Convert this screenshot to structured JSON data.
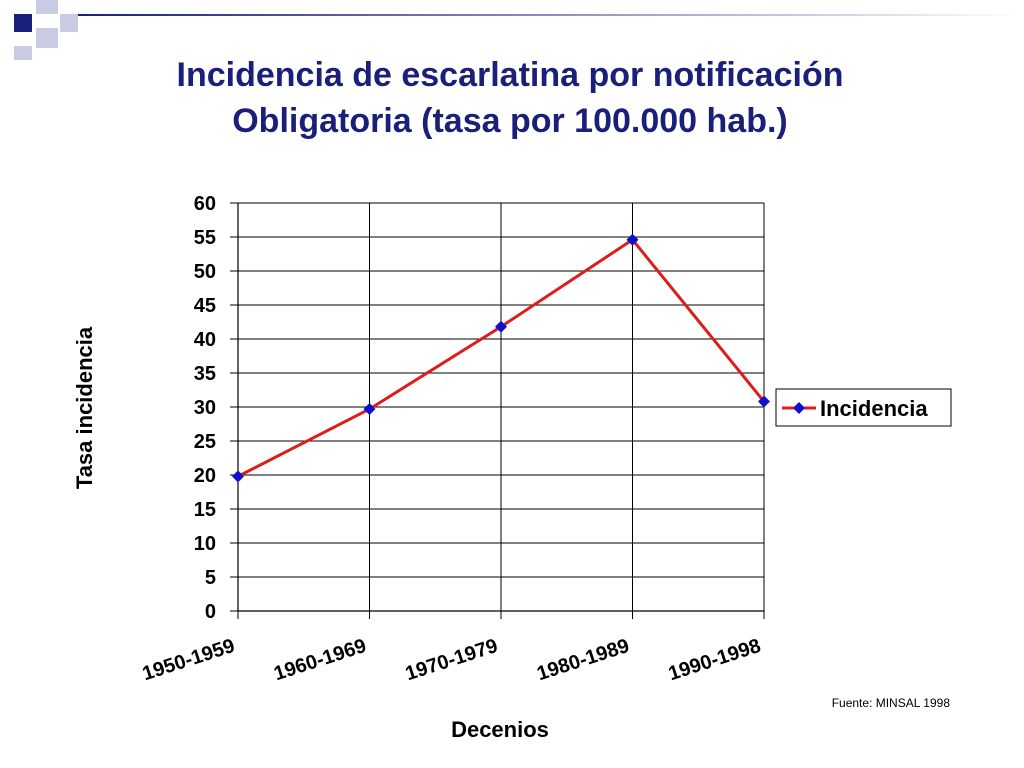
{
  "slide": {
    "title_line1": "Incidencia de escarlatina por notificación",
    "title_line2": "Obligatoria (tasa por 100.000 hab.)",
    "source": "Fuente: MINSAL 1998",
    "title_color": "#1a1f7a"
  },
  "chart_data": {
    "type": "line",
    "title": "Incidencia de escarlatina por notificación Obligatoria (tasa por 100.000 hab.)",
    "xlabel": "Decenios",
    "ylabel": "Tasa incidencia",
    "categories": [
      "1950-1959",
      "1960-1969",
      "1970-1979",
      "1980-1989",
      "1990-1998"
    ],
    "series": [
      {
        "name": "Incidencia",
        "values": [
          19.8,
          29.7,
          41.8,
          54.6,
          30.8
        ],
        "line_color": "#dd1c1c",
        "marker_color": "#1010cc",
        "marker": "diamond"
      }
    ],
    "ylim": [
      0,
      60
    ],
    "yticks": [
      0,
      5,
      10,
      15,
      20,
      25,
      30,
      35,
      40,
      45,
      50,
      55,
      60
    ],
    "grid": true,
    "legend_position": "right"
  }
}
